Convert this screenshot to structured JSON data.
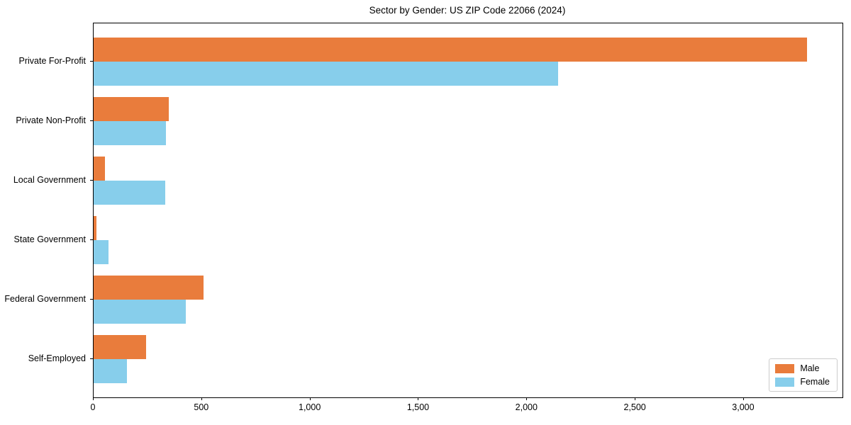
{
  "title": "Sector by Gender: US ZIP Code 22066 (2024)",
  "colors": {
    "male": "#E97C3C",
    "female": "#87CEEB",
    "spine": "#000000",
    "legend_border": "#cccccc",
    "background": "#ffffff",
    "text": "#000000"
  },
  "chart_data": {
    "type": "bar",
    "orientation": "horizontal",
    "title": "Sector by Gender: US ZIP Code 22066 (2024)",
    "xlabel": "",
    "ylabel": "",
    "categories": [
      "Private For-Profit",
      "Private Non-Profit",
      "Local Government",
      "State Government",
      "Federal Government",
      "Self-Employed"
    ],
    "series": [
      {
        "name": "Male",
        "color": "#E97C3C",
        "values": [
          3290,
          347,
          52,
          13,
          508,
          242
        ]
      },
      {
        "name": "Female",
        "color": "#87CEEB",
        "values": [
          2143,
          333,
          330,
          69,
          426,
          153
        ]
      }
    ],
    "xlim": [
      0,
      3455
    ],
    "xticks": [
      0,
      500,
      1000,
      1500,
      2000,
      2500,
      3000
    ],
    "xtick_labels": [
      "0",
      "500",
      "1,000",
      "1,500",
      "2,000",
      "2,500",
      "3,000"
    ],
    "grid": false,
    "legend": {
      "position": "lower right",
      "entries": [
        "Male",
        "Female"
      ]
    }
  }
}
